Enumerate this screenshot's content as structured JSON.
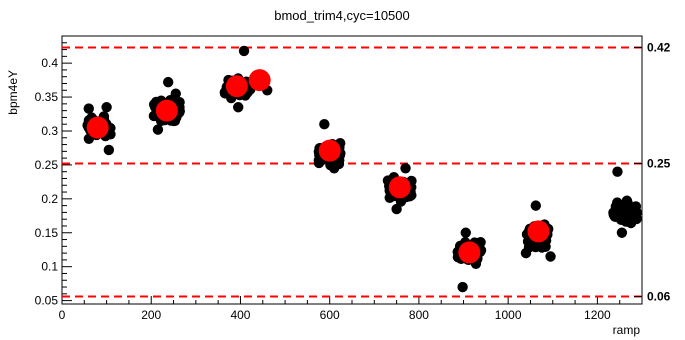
{
  "chart_data": {
    "type": "scatter",
    "title": "bmod_trim4,cyc=10500",
    "xlabel": "ramp",
    "ylabel": "bpm4eY",
    "xlim": [
      0,
      1300
    ],
    "ylim": [
      0.045,
      0.44
    ],
    "grid": false,
    "x_ticks": [
      0,
      200,
      400,
      600,
      800,
      1000,
      1200
    ],
    "x_tick_labels": [
      "0",
      "200",
      "400",
      "600",
      "800",
      "1000",
      "1200"
    ],
    "y_ticks": [
      0.05,
      0.1,
      0.15,
      0.2,
      0.25,
      0.3,
      0.35,
      0.4
    ],
    "y_tick_labels": [
      "0.05",
      "0.1",
      "0.15",
      "0.2",
      "0.25",
      "0.3",
      "0.35",
      "0.4"
    ],
    "reference_lines": [
      {
        "y": 0.423,
        "label": "0.42",
        "color": "#ff0000"
      },
      {
        "y": 0.252,
        "label": "0.25",
        "color": "#ff0000"
      },
      {
        "y": 0.056,
        "label": "0.06",
        "color": "#ff0000"
      }
    ],
    "series": [
      {
        "color": "#000000",
        "clusters": [
          {
            "x_min": 55,
            "x_max": 110,
            "y_center": 0.305,
            "y_spread": 0.022,
            "n": 60,
            "outliers": [
              [
                105,
                0.272
              ],
              [
                60,
                0.333
              ],
              [
                100,
                0.335
              ]
            ]
          },
          {
            "x_min": 205,
            "x_max": 265,
            "y_center": 0.33,
            "y_spread": 0.022,
            "n": 60,
            "outliers": [
              [
                238,
                0.372
              ],
              [
                215,
                0.302
              ],
              [
                255,
                0.355
              ]
            ]
          },
          {
            "x_min": 365,
            "x_max": 425,
            "y_center": 0.363,
            "y_spread": 0.018,
            "n": 60,
            "outliers": [
              [
                408,
                0.418
              ],
              [
                460,
                0.36
              ],
              [
                395,
                0.335
              ]
            ]
          },
          {
            "x_min": 575,
            "x_max": 625,
            "y_center": 0.268,
            "y_spread": 0.022,
            "n": 60,
            "outliers": [
              [
                588,
                0.31
              ],
              [
                610,
                0.245
              ]
            ]
          },
          {
            "x_min": 730,
            "x_max": 785,
            "y_center": 0.215,
            "y_spread": 0.022,
            "n": 60,
            "outliers": [
              [
                770,
                0.245
              ],
              [
                750,
                0.185
              ]
            ]
          },
          {
            "x_min": 885,
            "x_max": 940,
            "y_center": 0.122,
            "y_spread": 0.022,
            "n": 55,
            "outliers": [
              [
                898,
                0.07
              ],
              [
                905,
                0.15
              ]
            ]
          },
          {
            "x_min": 1040,
            "x_max": 1090,
            "y_center": 0.145,
            "y_spread": 0.022,
            "n": 50,
            "outliers": [
              [
                1062,
                0.19
              ],
              [
                1095,
                0.115
              ],
              [
                1040,
                0.12
              ]
            ]
          },
          {
            "x_min": 1235,
            "x_max": 1290,
            "y_center": 0.18,
            "y_spread": 0.022,
            "n": 55,
            "outliers": [
              [
                1245,
                0.24
              ],
              [
                1255,
                0.15
              ]
            ]
          }
        ]
      },
      {
        "color": "#ff0000",
        "points": [
          {
            "x": 80,
            "y": 0.305
          },
          {
            "x": 235,
            "y": 0.33
          },
          {
            "x": 392,
            "y": 0.366
          },
          {
            "x": 443,
            "y": 0.375
          },
          {
            "x": 600,
            "y": 0.271
          },
          {
            "x": 757,
            "y": 0.217
          },
          {
            "x": 913,
            "y": 0.121
          },
          {
            "x": 1068,
            "y": 0.152
          }
        ]
      }
    ]
  }
}
